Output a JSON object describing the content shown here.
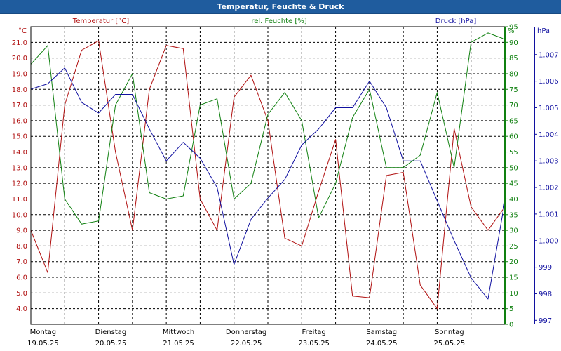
{
  "window": {
    "title": "Temperatur, Feuchte & Druck"
  },
  "colors": {
    "temperature": "#b01010",
    "humidity": "#108010",
    "pressure": "#1010a0",
    "titlebar": "#1f5c9e"
  },
  "chart_data": {
    "type": "line",
    "title": "Temperatur, Feuchte & Druck",
    "legend_position": "top",
    "grid": true,
    "x": [
      0,
      0.25,
      0.5,
      0.75,
      1,
      1.25,
      1.5,
      1.75,
      2,
      2.25,
      2.5,
      2.75,
      3,
      3.25,
      3.5,
      3.75,
      4,
      4.25,
      4.5,
      4.75,
      5,
      5.25,
      5.5,
      5.75,
      6,
      6.25,
      6.5,
      6.75,
      7
    ],
    "x_ticks": [
      {
        "day": "Montag",
        "date": "19.05.25"
      },
      {
        "day": "Dienstag",
        "date": "20.05.25"
      },
      {
        "day": "Mittwoch",
        "date": "21.05.25"
      },
      {
        "day": "Donnerstag",
        "date": "22.05.25"
      },
      {
        "day": "Freitag",
        "date": "23.05.25"
      },
      {
        "day": "Samstag",
        "date": "24.05.25"
      },
      {
        "day": "Sonntag",
        "date": "25.05.25"
      }
    ],
    "axes": {
      "temperature": {
        "label": "°C",
        "ylim": [
          3.0,
          22.0
        ],
        "ticks": [
          "21.0",
          "20.0",
          "19.0",
          "18.0",
          "17.0",
          "16.0",
          "15.0",
          "14.0",
          "13.0",
          "12.0",
          "11.0",
          "10.0",
          "9.0",
          "8.0",
          "7.0",
          "6.0",
          "5.0",
          "4.0"
        ]
      },
      "humidity": {
        "label": "%",
        "ylim": [
          0,
          95
        ],
        "ticks": [
          "95",
          "90",
          "85",
          "80",
          "75",
          "70",
          "65",
          "60",
          "55",
          "50",
          "45",
          "40",
          "35",
          "30",
          "25",
          "20",
          "15",
          "10",
          "5",
          "0"
        ]
      },
      "pressure": {
        "label": "hPa",
        "ylim": [
          996.85,
          1008.05
        ],
        "ticks": [
          "1.007",
          "1.006",
          "1.005",
          "1.004",
          "1.003",
          "1.002",
          "1.001",
          "1.000",
          "999",
          "998",
          "997"
        ]
      }
    },
    "series": [
      {
        "name": "Temperatur [°C]",
        "axis": "temperature",
        "values": [
          9.0,
          6.3,
          17.0,
          20.5,
          21.1,
          14.0,
          9.0,
          18.0,
          20.8,
          20.6,
          11.0,
          9.0,
          17.5,
          18.9,
          16.0,
          8.5,
          8.0,
          11.5,
          14.8,
          4.8,
          4.7,
          12.5,
          12.7,
          5.5,
          4.0,
          15.5,
          10.5,
          9.0,
          10.5
        ]
      },
      {
        "name": "rel. Feuchte [%]",
        "axis": "humidity",
        "values": [
          83,
          89,
          40,
          32,
          33,
          70,
          80,
          42,
          40,
          41,
          70,
          72,
          40,
          45,
          67,
          74,
          65,
          34,
          45,
          66,
          75,
          50,
          50,
          54,
          74,
          50,
          90,
          93,
          91
        ]
      },
      {
        "name": "Druck [hPa]",
        "axis": "pressure",
        "values": [
          1005.7,
          1005.9,
          1006.5,
          1005.2,
          1004.8,
          1005.5,
          1005.5,
          1004.2,
          1003.0,
          1003.7,
          1003.1,
          1002.0,
          999.1,
          1000.8,
          1001.6,
          1002.3,
          1003.6,
          1004.2,
          1005.0,
          1005.0,
          1006.0,
          1005.0,
          1003.0,
          1003.0,
          1001.5,
          1000.0,
          998.6,
          997.8,
          1001.5
        ]
      }
    ]
  }
}
